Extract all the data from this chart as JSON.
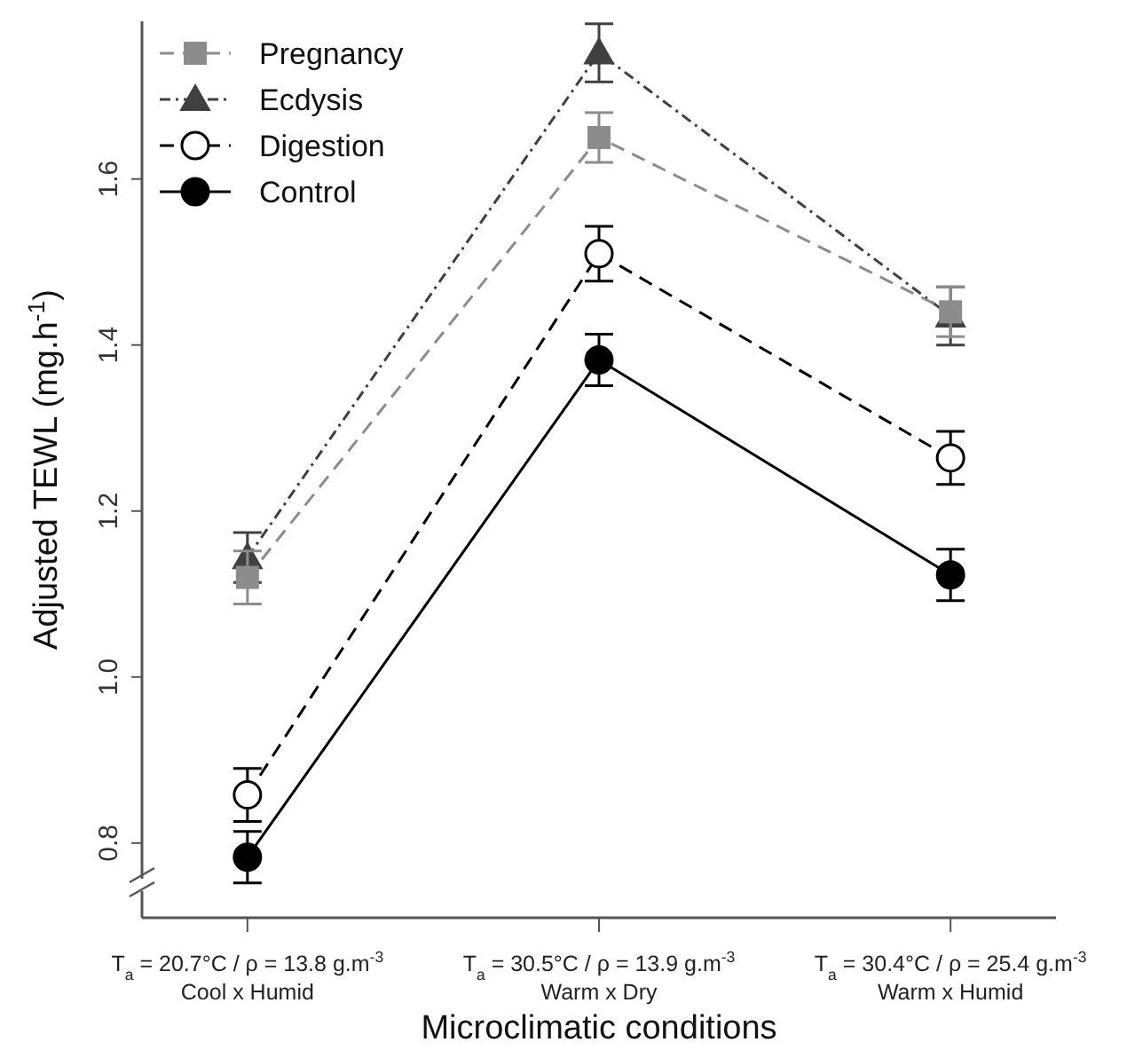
{
  "chart_data": {
    "type": "line",
    "xlabel": "Microclimatic conditions",
    "ylabel": "Adjusted TEWL (mg.h$^{-1}$)",
    "categories": [
      "T$_{a}$ = 20.7°C / ρ = 13.8 g.m$^{-3}$\nCool x Humid",
      "T$_{a}$ = 30.5°C / ρ = 13.9 g.m$^{-3}$\nWarm x Dry",
      "T$_{a}$ = 30.4°C / ρ = 25.4 g.m$^{-3}$\nWarm x Humid"
    ],
    "series": [
      {
        "name": "Pregnancy",
        "color": "#8c8c8c",
        "marker": "square",
        "line_style": "dashed",
        "values": [
          1.12,
          1.65,
          1.44
        ],
        "errors": [
          0.032,
          0.03,
          0.03
        ]
      },
      {
        "name": "Ecdysis",
        "color": "#404040",
        "marker": "triangle",
        "line_style": "dotted",
        "values": [
          1.144,
          1.752,
          1.435
        ],
        "errors": [
          0.03,
          0.035,
          0.035
        ]
      },
      {
        "name": "Digestion",
        "color": "#000000",
        "marker": "circle",
        "line_style": "dashed",
        "values": [
          0.858,
          1.51,
          1.264
        ],
        "errors": [
          0.032,
          0.033,
          0.032
        ]
      },
      {
        "name": "Control",
        "color": "#000000",
        "marker": "circle",
        "line_style": "solid",
        "values": [
          0.783,
          1.382,
          1.123
        ],
        "errors": [
          0.031,
          0.031,
          0.031
        ]
      }
    ],
    "ylim": [
      0.71,
      1.79
    ],
    "yticks": [
      0.8,
      {
        "value": 1,
        "label": "1.0"
      },
      1.2,
      1.4,
      1.6
    ],
    "grid": false,
    "legend": "top left"
  }
}
